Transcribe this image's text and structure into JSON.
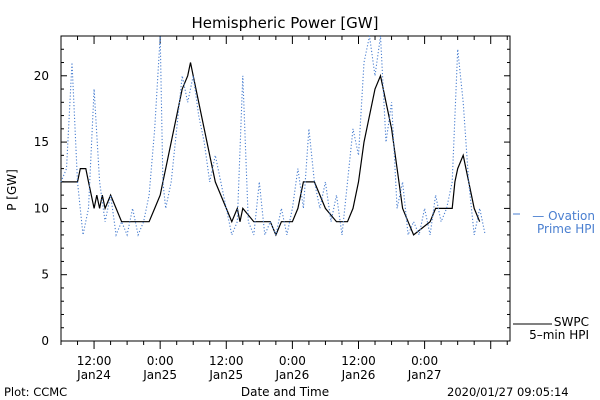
{
  "chart_data": {
    "type": "line",
    "title": "Hemispheric Power [GW]",
    "ylabel": "P [GW]",
    "xlabel": "Date and Time",
    "ylim": [
      0,
      23
    ],
    "yticks": [
      0,
      5,
      10,
      15,
      20
    ],
    "xlim": [
      "2020-01-24 06:00",
      "2020-01-27 15:30"
    ],
    "xtick_labels": [
      {
        "t": "2020-01-24 12:00",
        "line1": "12:00",
        "line2": "Jan24"
      },
      {
        "t": "2020-01-25 00:00",
        "line1": "0:00",
        "line2": "Jan25"
      },
      {
        "t": "2020-01-25 12:00",
        "line1": "12:00",
        "line2": "Jan25"
      },
      {
        "t": "2020-01-26 00:00",
        "line1": "0:00",
        "line2": "Jan26"
      },
      {
        "t": "2020-01-26 12:00",
        "line1": "12:00",
        "line2": "Jan26"
      },
      {
        "t": "2020-01-27 00:00",
        "line1": "0:00",
        "line2": "Jan27"
      }
    ],
    "series": [
      {
        "key": "swpc",
        "legend_lines": [
          "SWPC",
          "5–min HPI"
        ],
        "color": "#000000",
        "style": "solid",
        "points": [
          [
            "2020-01-24 06:00",
            12
          ],
          [
            "2020-01-24 09:00",
            12
          ],
          [
            "2020-01-24 09:30",
            13
          ],
          [
            "2020-01-24 10:30",
            13
          ],
          [
            "2020-01-24 11:00",
            12
          ],
          [
            "2020-01-24 11:30",
            11
          ],
          [
            "2020-01-24 12:00",
            10
          ],
          [
            "2020-01-24 12:30",
            11
          ],
          [
            "2020-01-24 13:00",
            10
          ],
          [
            "2020-01-24 13:30",
            11
          ],
          [
            "2020-01-24 14:00",
            10
          ],
          [
            "2020-01-24 15:00",
            11
          ],
          [
            "2020-01-24 16:00",
            10
          ],
          [
            "2020-01-24 17:00",
            9
          ],
          [
            "2020-01-24 22:00",
            9
          ],
          [
            "2020-01-24 23:00",
            10
          ],
          [
            "2020-01-25 00:00",
            11
          ],
          [
            "2020-01-25 00:30",
            12
          ],
          [
            "2020-01-25 01:00",
            13
          ],
          [
            "2020-01-25 02:00",
            15
          ],
          [
            "2020-01-25 03:00",
            17
          ],
          [
            "2020-01-25 04:00",
            19
          ],
          [
            "2020-01-25 05:00",
            20
          ],
          [
            "2020-01-25 05:30",
            21
          ],
          [
            "2020-01-25 06:00",
            20
          ],
          [
            "2020-01-25 07:00",
            18
          ],
          [
            "2020-01-25 08:00",
            16
          ],
          [
            "2020-01-25 09:00",
            14
          ],
          [
            "2020-01-25 10:00",
            12
          ],
          [
            "2020-01-25 11:00",
            11
          ],
          [
            "2020-01-25 12:00",
            10
          ],
          [
            "2020-01-25 13:00",
            9
          ],
          [
            "2020-01-25 14:00",
            10
          ],
          [
            "2020-01-25 14:30",
            9
          ],
          [
            "2020-01-25 15:00",
            10
          ],
          [
            "2020-01-25 17:00",
            9
          ],
          [
            "2020-01-25 20:00",
            9
          ],
          [
            "2020-01-25 21:00",
            8
          ],
          [
            "2020-01-25 22:00",
            9
          ],
          [
            "2020-01-26 00:00",
            9
          ],
          [
            "2020-01-26 01:00",
            10
          ],
          [
            "2020-01-26 02:00",
            12
          ],
          [
            "2020-01-26 04:00",
            12
          ],
          [
            "2020-01-26 05:00",
            11
          ],
          [
            "2020-01-26 06:00",
            10
          ],
          [
            "2020-01-26 08:00",
            9
          ],
          [
            "2020-01-26 10:00",
            9
          ],
          [
            "2020-01-26 11:00",
            10
          ],
          [
            "2020-01-26 12:00",
            12
          ],
          [
            "2020-01-26 13:00",
            15
          ],
          [
            "2020-01-26 14:00",
            17
          ],
          [
            "2020-01-26 15:00",
            19
          ],
          [
            "2020-01-26 16:00",
            20
          ],
          [
            "2020-01-26 17:00",
            18
          ],
          [
            "2020-01-26 18:00",
            16
          ],
          [
            "2020-01-26 19:00",
            13
          ],
          [
            "2020-01-26 20:00",
            10
          ],
          [
            "2020-01-26 21:00",
            9
          ],
          [
            "2020-01-26 22:00",
            8
          ],
          [
            "2020-01-27 01:00",
            9
          ],
          [
            "2020-01-27 02:00",
            10
          ],
          [
            "2020-01-27 05:00",
            10
          ],
          [
            "2020-01-27 05:30",
            12
          ],
          [
            "2020-01-27 06:00",
            13
          ],
          [
            "2020-01-27 07:00",
            14
          ],
          [
            "2020-01-27 08:00",
            12
          ],
          [
            "2020-01-27 09:00",
            10
          ],
          [
            "2020-01-27 10:00",
            9
          ]
        ]
      },
      {
        "key": "ovation",
        "legend_lines": [
          "— Ovation",
          "Prime HPI"
        ],
        "color": "#4a7fd0",
        "style": "dotted",
        "points": [
          [
            "2020-01-24 06:00",
            12
          ],
          [
            "2020-01-24 07:00",
            13
          ],
          [
            "2020-01-24 08:00",
            21
          ],
          [
            "2020-01-24 09:00",
            12
          ],
          [
            "2020-01-24 10:00",
            8
          ],
          [
            "2020-01-24 11:00",
            10
          ],
          [
            "2020-01-24 12:00",
            19
          ],
          [
            "2020-01-24 13:00",
            12
          ],
          [
            "2020-01-24 14:00",
            9
          ],
          [
            "2020-01-24 15:00",
            11
          ],
          [
            "2020-01-24 16:00",
            8
          ],
          [
            "2020-01-24 17:00",
            9
          ],
          [
            "2020-01-24 18:00",
            8
          ],
          [
            "2020-01-24 19:00",
            10
          ],
          [
            "2020-01-24 20:00",
            8
          ],
          [
            "2020-01-24 21:00",
            9
          ],
          [
            "2020-01-24 22:00",
            11
          ],
          [
            "2020-01-24 23:00",
            16
          ],
          [
            "2020-01-25 00:00",
            23
          ],
          [
            "2020-01-25 00:30",
            12
          ],
          [
            "2020-01-25 01:00",
            10
          ],
          [
            "2020-01-25 02:00",
            12
          ],
          [
            "2020-01-25 03:00",
            16
          ],
          [
            "2020-01-25 04:00",
            20
          ],
          [
            "2020-01-25 05:00",
            18
          ],
          [
            "2020-01-25 06:00",
            20
          ],
          [
            "2020-01-25 07:00",
            17
          ],
          [
            "2020-01-25 08:00",
            15
          ],
          [
            "2020-01-25 09:00",
            12
          ],
          [
            "2020-01-25 10:00",
            14
          ],
          [
            "2020-01-25 11:00",
            12
          ],
          [
            "2020-01-25 12:00",
            10
          ],
          [
            "2020-01-25 13:00",
            8
          ],
          [
            "2020-01-25 14:00",
            9
          ],
          [
            "2020-01-25 15:00",
            20
          ],
          [
            "2020-01-25 16:00",
            9
          ],
          [
            "2020-01-25 17:00",
            8
          ],
          [
            "2020-01-25 18:00",
            12
          ],
          [
            "2020-01-25 19:00",
            8
          ],
          [
            "2020-01-25 20:00",
            9
          ],
          [
            "2020-01-25 21:00",
            8
          ],
          [
            "2020-01-25 22:00",
            10
          ],
          [
            "2020-01-25 23:00",
            8
          ],
          [
            "2020-01-26 00:00",
            10
          ],
          [
            "2020-01-26 01:00",
            13
          ],
          [
            "2020-01-26 02:00",
            10
          ],
          [
            "2020-01-26 03:00",
            16
          ],
          [
            "2020-01-26 04:00",
            12
          ],
          [
            "2020-01-26 05:00",
            10
          ],
          [
            "2020-01-26 06:00",
            12
          ],
          [
            "2020-01-26 07:00",
            9
          ],
          [
            "2020-01-26 08:00",
            11
          ],
          [
            "2020-01-26 09:00",
            8
          ],
          [
            "2020-01-26 10:00",
            12
          ],
          [
            "2020-01-26 11:00",
            16
          ],
          [
            "2020-01-26 12:00",
            14
          ],
          [
            "2020-01-26 13:00",
            21
          ],
          [
            "2020-01-26 14:00",
            23
          ],
          [
            "2020-01-26 15:00",
            20
          ],
          [
            "2020-01-26 16:00",
            23
          ],
          [
            "2020-01-26 17:00",
            15
          ],
          [
            "2020-01-26 18:00",
            18
          ],
          [
            "2020-01-26 19:00",
            10
          ],
          [
            "2020-01-26 20:00",
            12
          ],
          [
            "2020-01-26 21:00",
            8
          ],
          [
            "2020-01-26 22:00",
            9
          ],
          [
            "2020-01-26 23:00",
            8
          ],
          [
            "2020-01-27 00:00",
            10
          ],
          [
            "2020-01-27 01:00",
            8
          ],
          [
            "2020-01-27 02:00",
            11
          ],
          [
            "2020-01-27 03:00",
            9
          ],
          [
            "2020-01-27 04:00",
            10
          ],
          [
            "2020-01-27 05:00",
            12
          ],
          [
            "2020-01-27 06:00",
            22
          ],
          [
            "2020-01-27 07:00",
            18
          ],
          [
            "2020-01-27 08:00",
            12
          ],
          [
            "2020-01-27 09:00",
            8
          ],
          [
            "2020-01-27 10:00",
            10
          ],
          [
            "2020-01-27 11:00",
            8
          ]
        ]
      }
    ]
  },
  "footer": {
    "left": "Plot: CCMC",
    "right": "2020/01/27 09:05:14"
  }
}
